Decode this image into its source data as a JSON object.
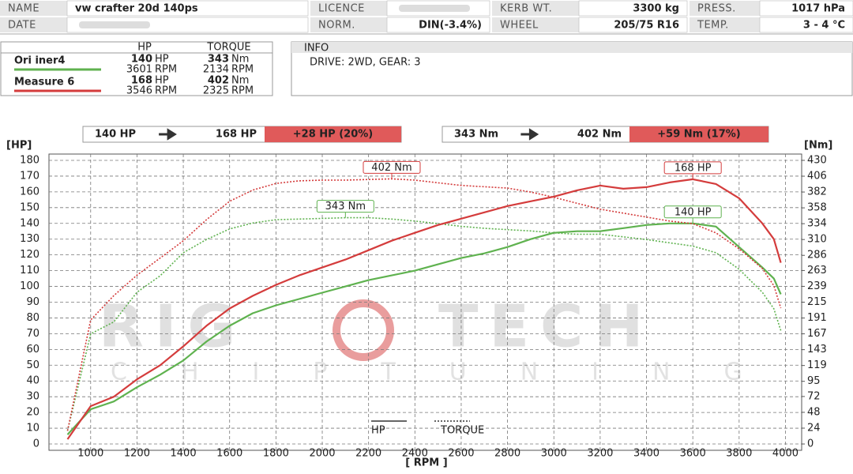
{
  "header": {
    "cells": [
      {
        "label": "NAME",
        "value": "vw crafter 20d 140ps"
      },
      {
        "label": "LICENCE"
      },
      {
        "label": "KERB WT.",
        "value": "3300 kg"
      },
      {
        "label": "PRESS.",
        "value": "1017 hPa"
      },
      {
        "label": "DATE"
      },
      {
        "label": "NORM.",
        "value": "DIN(-3.4%)"
      },
      {
        "label": "WHEEL",
        "value": "205/75 R16"
      },
      {
        "label": "TEMP.",
        "value": "3 - 4 °C"
      }
    ]
  },
  "summary": {
    "headers": [
      "HP",
      "TORQUE"
    ],
    "units": {
      "power": "HP",
      "torque": "Nm",
      "rpm": "RPM"
    },
    "rows": [
      {
        "power": 140,
        "power_rpm": 3601,
        "torque": 343,
        "torque_rpm": 2134
      },
      {
        "power": 168,
        "power_rpm": 3546,
        "torque": 402,
        "torque_rpm": 2325
      }
    ]
  },
  "info": {
    "title": "INFO",
    "text": "DRIVE: 2WD,  GEAR: 3"
  },
  "comparisons": [
    {
      "from": "140 HP",
      "to": "168 HP",
      "delta": "+28 HP  (20%)"
    },
    {
      "from": "343 Nm",
      "to": "402 Nm",
      "delta": "+59 Nm  (17%)"
    }
  ],
  "watermark": {
    "left": "RIG",
    "right": "TECH",
    "tagline": "CHIPTUNING"
  },
  "chart_data": {
    "type": "line",
    "x_label": "[ RPM ]",
    "y_label": "[HP]",
    "y2_label": "[Nm]",
    "x": [
      900,
      1000,
      1100,
      1200,
      1300,
      1400,
      1500,
      1600,
      1700,
      1800,
      1900,
      2000,
      2100,
      2200,
      2300,
      2400,
      2500,
      2600,
      2700,
      2800,
      2900,
      3000,
      3100,
      3200,
      3300,
      3400,
      3500,
      3600,
      3700,
      3800,
      3900,
      3950,
      3980
    ],
    "series": [
      {
        "name": "Ori iner4",
        "color": "#5fb24f",
        "style": "solid",
        "values": [
          6,
          22,
          27,
          36,
          44,
          53,
          65,
          75,
          83,
          88,
          92,
          96,
          100,
          104,
          107,
          110,
          114,
          118,
          121,
          125,
          130,
          134,
          135,
          135,
          137,
          139,
          140,
          140,
          138,
          125,
          112,
          105,
          95
        ]
      },
      {
        "color": "#5fb24f",
        "style": "dotted",
        "axis": "y2",
        "values": [
          20,
          167,
          185,
          230,
          255,
          290,
          310,
          326,
          335,
          340,
          341,
          342,
          343,
          343,
          341,
          338,
          334,
          330,
          327,
          325,
          323,
          320,
          318,
          318,
          314,
          310,
          305,
          300,
          290,
          265,
          230,
          205,
          172
        ]
      },
      {
        "name": "Measure 6",
        "color": "#d43c3c",
        "style": "solid",
        "values": [
          3,
          24,
          30,
          41,
          50,
          62,
          75,
          86,
          94,
          101,
          107,
          112,
          117,
          123,
          129,
          134,
          139,
          143,
          147,
          151,
          154,
          157,
          161,
          164,
          162,
          163,
          166,
          168,
          165,
          156,
          140,
          130,
          115
        ]
      },
      {
        "color": "#d43c3c",
        "style": "dotted",
        "axis": "y2",
        "values": [
          20,
          188,
          225,
          256,
          282,
          308,
          340,
          368,
          385,
          395,
          399,
          400,
          400,
          401,
          402,
          400,
          396,
          392,
          390,
          388,
          382,
          374,
          365,
          356,
          350,
          344,
          338,
          334,
          320,
          296,
          266,
          240,
          206
        ]
      }
    ],
    "xlim": [
      820,
      4070
    ],
    "ylim": [
      -4,
      184
    ],
    "y2lim": [
      -9.56,
      439.56
    ],
    "xticks": [
      1000,
      1200,
      1400,
      1600,
      1800,
      2000,
      2200,
      2400,
      2600,
      2800,
      3000,
      3200,
      3400,
      3600,
      3800,
      4000
    ],
    "yticks": [
      0,
      10,
      20,
      30,
      40,
      50,
      60,
      70,
      80,
      90,
      100,
      110,
      120,
      130,
      140,
      150,
      160,
      170,
      180
    ],
    "y2ticks": [
      0,
      24,
      48,
      72,
      95,
      119,
      143,
      167,
      191,
      215,
      239,
      263,
      286,
      310,
      334,
      358,
      382,
      406,
      430
    ],
    "grid": true,
    "legend": [
      {
        "label": "HP",
        "style": "solid"
      },
      {
        "label": "TORQUE",
        "style": "dotted"
      }
    ],
    "annotations": [
      {
        "text": "402 Nm",
        "series": 3,
        "x": 2300,
        "y": 402
      },
      {
        "text": "168 HP",
        "series": 2,
        "x": 3600,
        "y": 168
      },
      {
        "text": "343 Nm",
        "series": 1,
        "x": 2100,
        "y": 343
      },
      {
        "text": "140 HP",
        "series": 0,
        "x": 3600,
        "y": 140
      }
    ]
  }
}
